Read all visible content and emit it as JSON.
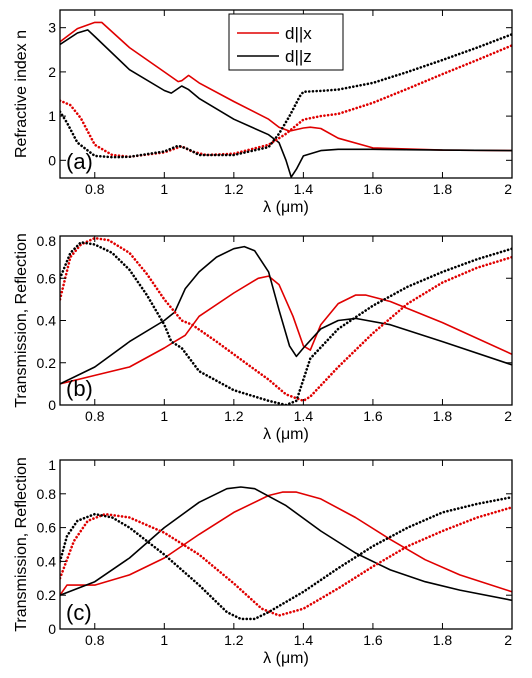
{
  "colors": {
    "red": "#e00000",
    "black": "#000000"
  },
  "legend": [
    {
      "label": "d||x",
      "color": "#e00000"
    },
    {
      "label": "d||z",
      "color": "#000000"
    }
  ],
  "chart_data": [
    {
      "type": "line",
      "panel_label": "(a)",
      "xlabel": "λ (μm)",
      "ylabel": "Refractive index n",
      "xlim": [
        0.7,
        2.0
      ],
      "ylim": [
        -0.4,
        3.4
      ],
      "xticks": [
        0.8,
        1,
        1.2,
        1.4,
        1.6,
        1.8,
        2
      ],
      "xtick_labels": [
        "0.8",
        "1",
        "1.2",
        "1.4",
        "1.6",
        "1.8",
        "2"
      ],
      "yticks": [
        0,
        1,
        2,
        3
      ],
      "ytick_labels": [
        "0",
        "1",
        "2",
        "3"
      ],
      "legend_position": "top-center",
      "series": [
        {
          "color": "red",
          "style": "solid",
          "x": [
            0.7,
            0.75,
            0.8,
            0.82,
            0.9,
            1.0,
            1.04,
            1.05,
            1.07,
            1.1,
            1.2,
            1.3,
            1.33,
            1.36,
            1.4,
            1.42,
            1.45,
            1.5,
            1.6,
            1.8,
            2.0
          ],
          "y": [
            2.68,
            2.98,
            3.12,
            3.12,
            2.55,
            2.0,
            1.78,
            1.8,
            1.92,
            1.75,
            1.33,
            0.93,
            0.75,
            0.66,
            0.73,
            0.75,
            0.72,
            0.5,
            0.28,
            0.23,
            0.22
          ]
        },
        {
          "color": "black",
          "style": "solid",
          "x": [
            0.7,
            0.75,
            0.78,
            0.8,
            0.9,
            1.0,
            1.02,
            1.05,
            1.07,
            1.1,
            1.2,
            1.3,
            1.33,
            1.35,
            1.365,
            1.38,
            1.4,
            1.45,
            1.5,
            1.6,
            1.8,
            2.0
          ],
          "y": [
            2.62,
            2.88,
            2.95,
            2.8,
            2.05,
            1.58,
            1.52,
            1.68,
            1.6,
            1.4,
            0.93,
            0.58,
            0.4,
            0.0,
            -0.38,
            -0.2,
            0.1,
            0.22,
            0.25,
            0.25,
            0.23,
            0.22
          ]
        },
        {
          "color": "red",
          "style": "dotted",
          "x": [
            0.7,
            0.73,
            0.76,
            0.8,
            0.85,
            0.9,
            1.0,
            1.05,
            1.08,
            1.12,
            1.2,
            1.3,
            1.35,
            1.4,
            1.45,
            1.5,
            1.6,
            1.7,
            1.8,
            1.9,
            2.0
          ],
          "y": [
            1.35,
            1.25,
            0.95,
            0.35,
            0.12,
            0.08,
            0.18,
            0.32,
            0.2,
            0.12,
            0.15,
            0.35,
            0.6,
            0.92,
            1.0,
            1.05,
            1.3,
            1.62,
            1.95,
            2.27,
            2.6
          ]
        },
        {
          "color": "black",
          "style": "dotted",
          "x": [
            0.7,
            0.72,
            0.75,
            0.8,
            0.85,
            0.9,
            1.0,
            1.04,
            1.07,
            1.1,
            1.2,
            1.3,
            1.33,
            1.36,
            1.39,
            1.4,
            1.45,
            1.5,
            1.6,
            1.7,
            1.8,
            1.9,
            2.0
          ],
          "y": [
            1.1,
            0.85,
            0.4,
            0.1,
            0.07,
            0.08,
            0.2,
            0.33,
            0.25,
            0.12,
            0.12,
            0.3,
            0.6,
            1.0,
            1.45,
            1.55,
            1.57,
            1.6,
            1.75,
            2.0,
            2.27,
            2.55,
            2.85
          ]
        }
      ]
    },
    {
      "type": "line",
      "panel_label": "(b)",
      "xlabel": "λ (μm)",
      "ylabel": "Transmission, Reflection",
      "xlim": [
        0.7,
        2.0
      ],
      "ylim": [
        0,
        0.8
      ],
      "xticks": [
        0.8,
        1,
        1.2,
        1.4,
        1.6,
        1.8,
        2
      ],
      "xtick_labels": [
        "0.8",
        "1",
        "1.2",
        "1.4",
        "1.6",
        "1.8",
        "2"
      ],
      "yticks": [
        0,
        0.2,
        0.4,
        0.6,
        0.8
      ],
      "ytick_labels": [
        "0",
        "0.2",
        "0.4",
        "0.6",
        "0.8"
      ],
      "series": [
        {
          "color": "red",
          "style": "solid",
          "x": [
            0.7,
            0.8,
            0.9,
            1.0,
            1.03,
            1.06,
            1.1,
            1.2,
            1.27,
            1.3,
            1.33,
            1.37,
            1.4,
            1.42,
            1.45,
            1.5,
            1.55,
            1.58,
            1.65,
            1.8,
            2.0
          ],
          "y": [
            0.1,
            0.14,
            0.18,
            0.27,
            0.3,
            0.33,
            0.42,
            0.53,
            0.6,
            0.61,
            0.57,
            0.42,
            0.28,
            0.26,
            0.38,
            0.48,
            0.52,
            0.52,
            0.49,
            0.39,
            0.24
          ]
        },
        {
          "color": "black",
          "style": "solid",
          "x": [
            0.7,
            0.8,
            0.9,
            1.0,
            1.03,
            1.06,
            1.1,
            1.15,
            1.2,
            1.23,
            1.26,
            1.3,
            1.33,
            1.36,
            1.38,
            1.4,
            1.45,
            1.5,
            1.55,
            1.65,
            1.8,
            2.0
          ],
          "y": [
            0.1,
            0.18,
            0.3,
            0.4,
            0.44,
            0.55,
            0.63,
            0.7,
            0.74,
            0.75,
            0.73,
            0.63,
            0.45,
            0.28,
            0.23,
            0.27,
            0.36,
            0.4,
            0.41,
            0.38,
            0.3,
            0.19
          ]
        },
        {
          "color": "red",
          "style": "dotted",
          "x": [
            0.7,
            0.73,
            0.76,
            0.8,
            0.84,
            0.9,
            0.95,
            1.0,
            1.05,
            1.08,
            1.15,
            1.2,
            1.25,
            1.3,
            1.35,
            1.4,
            1.42,
            1.5,
            1.6,
            1.7,
            1.8,
            1.9,
            2.0
          ],
          "y": [
            0.5,
            0.7,
            0.76,
            0.79,
            0.78,
            0.72,
            0.62,
            0.5,
            0.4,
            0.38,
            0.3,
            0.24,
            0.18,
            0.12,
            0.05,
            0.02,
            0.04,
            0.18,
            0.34,
            0.48,
            0.58,
            0.65,
            0.7
          ]
        },
        {
          "color": "black",
          "style": "dotted",
          "x": [
            0.7,
            0.73,
            0.76,
            0.8,
            0.85,
            0.9,
            0.95,
            1.0,
            1.02,
            1.05,
            1.1,
            1.2,
            1.3,
            1.35,
            1.38,
            1.42,
            1.5,
            1.6,
            1.7,
            1.8,
            1.9,
            2.0
          ],
          "y": [
            0.6,
            0.72,
            0.77,
            0.76,
            0.72,
            0.64,
            0.52,
            0.38,
            0.3,
            0.27,
            0.16,
            0.07,
            0.02,
            0.0,
            0.02,
            0.22,
            0.36,
            0.47,
            0.56,
            0.63,
            0.69,
            0.74
          ]
        }
      ]
    },
    {
      "type": "line",
      "panel_label": "(c)",
      "xlabel": "λ (μm)",
      "ylabel": "Transmission, Reflection",
      "xlim": [
        0.7,
        2.0
      ],
      "ylim": [
        0,
        1
      ],
      "xticks": [
        0.8,
        1,
        1.2,
        1.4,
        1.6,
        1.8,
        2
      ],
      "xtick_labels": [
        "0.8",
        "1",
        "1.2",
        "1.4",
        "1.6",
        "1.8",
        "2"
      ],
      "yticks": [
        0,
        0.2,
        0.4,
        0.6,
        0.8,
        1
      ],
      "ytick_labels": [
        "0",
        "0.2",
        "0.4",
        "0.6",
        "0.8",
        "1"
      ],
      "series": [
        {
          "color": "red",
          "style": "solid",
          "x": [
            0.7,
            0.72,
            0.8,
            0.9,
            1.0,
            1.1,
            1.2,
            1.3,
            1.34,
            1.38,
            1.45,
            1.55,
            1.65,
            1.75,
            1.85,
            2.0
          ],
          "y": [
            0.2,
            0.26,
            0.26,
            0.32,
            0.42,
            0.56,
            0.69,
            0.79,
            0.81,
            0.81,
            0.77,
            0.66,
            0.53,
            0.41,
            0.32,
            0.22
          ]
        },
        {
          "color": "black",
          "style": "solid",
          "x": [
            0.7,
            0.8,
            0.9,
            1.0,
            1.1,
            1.18,
            1.22,
            1.26,
            1.35,
            1.45,
            1.55,
            1.65,
            1.75,
            1.85,
            2.0
          ],
          "y": [
            0.2,
            0.28,
            0.42,
            0.6,
            0.75,
            0.83,
            0.84,
            0.83,
            0.73,
            0.58,
            0.45,
            0.35,
            0.28,
            0.23,
            0.17
          ]
        },
        {
          "color": "red",
          "style": "dotted",
          "x": [
            0.7,
            0.74,
            0.78,
            0.83,
            0.9,
            1.0,
            1.1,
            1.2,
            1.28,
            1.33,
            1.4,
            1.5,
            1.6,
            1.7,
            1.8,
            1.9,
            2.0
          ],
          "y": [
            0.3,
            0.52,
            0.64,
            0.68,
            0.66,
            0.57,
            0.44,
            0.27,
            0.12,
            0.08,
            0.12,
            0.24,
            0.37,
            0.49,
            0.58,
            0.66,
            0.72
          ]
        },
        {
          "color": "black",
          "style": "dotted",
          "x": [
            0.7,
            0.72,
            0.75,
            0.8,
            0.85,
            0.9,
            1.0,
            1.1,
            1.18,
            1.22,
            1.26,
            1.3,
            1.4,
            1.5,
            1.6,
            1.7,
            1.8,
            1.9,
            2.0
          ],
          "y": [
            0.4,
            0.55,
            0.64,
            0.68,
            0.66,
            0.6,
            0.44,
            0.26,
            0.1,
            0.06,
            0.06,
            0.1,
            0.22,
            0.36,
            0.49,
            0.6,
            0.69,
            0.74,
            0.78
          ]
        }
      ]
    }
  ]
}
